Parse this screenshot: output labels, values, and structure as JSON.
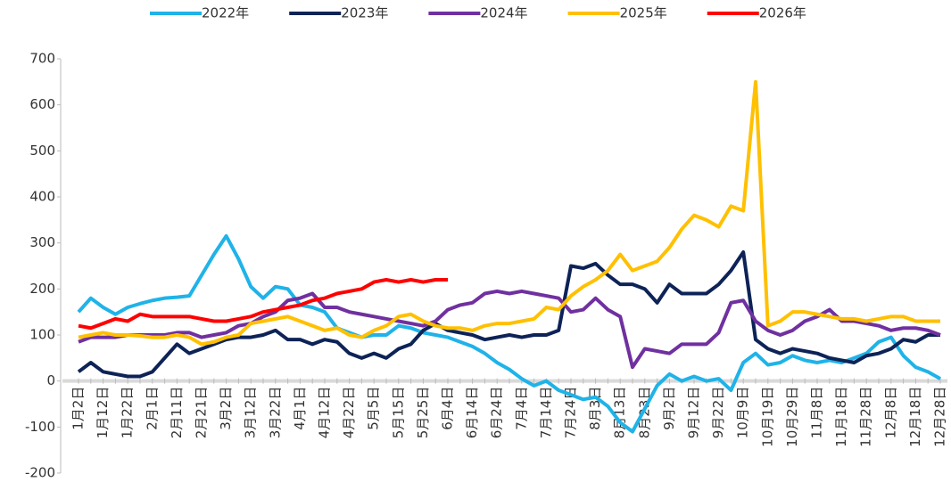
{
  "chart_data": {
    "type": "line",
    "categories": [
      "1月2日",
      null,
      "1月12日",
      null,
      "1月22日",
      null,
      "2月1日",
      null,
      "2月11日",
      null,
      "2月21日",
      null,
      "3月2日",
      null,
      "3月12日",
      null,
      "3月22日",
      null,
      "4月1日",
      null,
      "4月12日",
      null,
      "4月22日",
      null,
      "5月5日",
      null,
      "5月15日",
      null,
      "5月25日",
      null,
      "6月4日",
      null,
      "6月14日",
      null,
      "6月24日",
      null,
      "7月4日",
      null,
      "7月14日",
      null,
      "7月24日",
      null,
      "8月3日",
      null,
      "8月13日",
      null,
      "8月23日",
      null,
      "9月2日",
      null,
      "9月12日",
      null,
      "9月22日",
      null,
      "10月9日",
      null,
      "10月19日",
      null,
      "10月29日",
      null,
      "11月8日",
      null,
      "11月18日",
      null,
      "11月28日",
      null,
      "12月8日",
      null,
      "12月18日",
      null,
      "12月28日"
    ],
    "series": [
      {
        "name": "2022年",
        "color": "#1fb3e8",
        "values": [
          150,
          180,
          160,
          145,
          160,
          168,
          175,
          180,
          182,
          185,
          230,
          275,
          315,
          265,
          205,
          180,
          205,
          200,
          165,
          160,
          150,
          115,
          105,
          95,
          100,
          100,
          120,
          115,
          105,
          100,
          95,
          85,
          75,
          60,
          40,
          25,
          5,
          -10,
          0,
          -20,
          -30,
          -40,
          -35,
          -55,
          -90,
          -110,
          -60,
          -10,
          15,
          0,
          10,
          0,
          5,
          -20,
          40,
          60,
          35,
          40,
          55,
          45,
          40,
          45,
          40,
          50,
          60,
          85,
          95,
          55,
          30,
          20,
          5
        ]
      },
      {
        "name": "2023年",
        "color": "#0d2357",
        "values": [
          20,
          40,
          20,
          15,
          10,
          10,
          20,
          50,
          80,
          60,
          70,
          80,
          90,
          95,
          95,
          100,
          110,
          90,
          90,
          80,
          90,
          85,
          60,
          50,
          60,
          50,
          70,
          80,
          110,
          125,
          110,
          105,
          100,
          90,
          95,
          100,
          95,
          100,
          100,
          110,
          250,
          245,
          255,
          230,
          210,
          210,
          200,
          170,
          210,
          190,
          190,
          190,
          210,
          240,
          280,
          90,
          70,
          60,
          70,
          65,
          60,
          50,
          45,
          40,
          55,
          60,
          70,
          90,
          85,
          100,
          100
        ]
      },
      {
        "name": "2024年",
        "color": "#7030a0",
        "values": [
          85,
          95,
          95,
          95,
          100,
          100,
          100,
          100,
          105,
          105,
          95,
          100,
          105,
          120,
          125,
          140,
          150,
          175,
          180,
          190,
          160,
          160,
          150,
          145,
          140,
          135,
          130,
          125,
          120,
          130,
          155,
          165,
          170,
          190,
          195,
          190,
          195,
          190,
          185,
          180,
          150,
          155,
          180,
          155,
          140,
          30,
          70,
          65,
          60,
          80,
          80,
          80,
          105,
          170,
          175,
          130,
          110,
          100,
          110,
          130,
          140,
          155,
          130,
          130,
          125,
          120,
          110,
          115,
          115,
          110,
          100
        ]
      },
      {
        "name": "2025年",
        "color": "#ffc000",
        "values": [
          95,
          100,
          105,
          100,
          100,
          98,
          95,
          95,
          100,
          95,
          80,
          85,
          95,
          100,
          125,
          130,
          135,
          140,
          130,
          120,
          110,
          115,
          100,
          95,
          110,
          120,
          140,
          145,
          130,
          120,
          115,
          115,
          110,
          120,
          125,
          125,
          130,
          135,
          160,
          155,
          185,
          205,
          220,
          240,
          275,
          240,
          250,
          260,
          290,
          330,
          360,
          350,
          335,
          380,
          370,
          650,
          120,
          130,
          150,
          150,
          145,
          140,
          135,
          135,
          130,
          135,
          140,
          140,
          130,
          130,
          130
        ]
      },
      {
        "name": "2026年",
        "color": "#ff0000",
        "values": [
          120,
          115,
          125,
          135,
          130,
          145,
          140,
          140,
          140,
          140,
          135,
          130,
          130,
          135,
          140,
          150,
          155,
          160,
          165,
          175,
          180,
          190,
          195,
          200,
          215,
          220,
          215,
          220,
          215,
          220,
          220,
          null,
          null,
          null,
          null,
          null,
          null,
          null,
          null,
          null,
          null,
          null,
          null,
          null,
          null,
          null,
          null,
          null,
          null,
          null,
          null,
          null,
          null,
          null,
          null,
          null,
          null,
          null,
          null,
          null,
          null,
          null,
          null,
          null,
          null,
          null,
          null,
          null,
          null,
          null,
          null
        ]
      }
    ],
    "ylim": [
      -200,
      700
    ],
    "yticks": [
      -200,
      -100,
      0,
      100,
      200,
      300,
      400,
      500,
      600,
      700
    ]
  }
}
